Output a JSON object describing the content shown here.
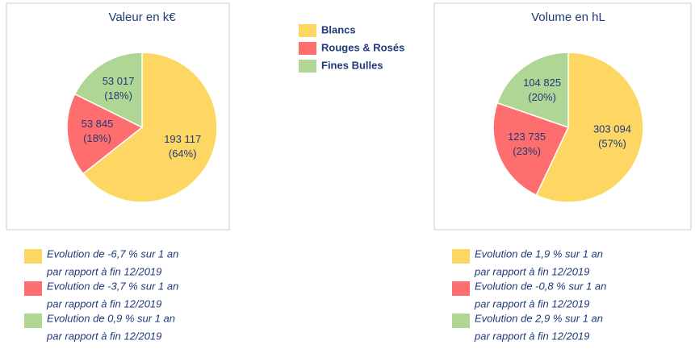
{
  "chart_data": [
    {
      "type": "pie",
      "title": "Valeur en k€",
      "categories": [
        "Blancs",
        "Rouges & Rosés",
        "Fines Bulles"
      ],
      "colors": [
        "#fdd663",
        "#ff6e6e",
        "#b0d695"
      ],
      "values": [
        193117,
        53845,
        53017
      ],
      "value_labels": [
        "193 117",
        "53 845",
        "53 017"
      ],
      "shares": [
        64,
        18,
        18
      ],
      "share_labels": [
        "(64%)",
        "(18%)",
        "(18%)"
      ],
      "annotations": [
        [
          "Evolution de -6,7 % sur 1 an",
          "par rapport à fin 12/2019"
        ],
        [
          "Evolution de -3,7 % sur 1 an",
          "par rapport à fin 12/2019"
        ],
        [
          "Evolution de 0,9 % sur 1 an",
          "par rapport à fin 12/2019"
        ]
      ]
    },
    {
      "type": "pie",
      "title": "Volume en hL",
      "categories": [
        "Blancs",
        "Rouges & Rosés",
        "Fines Bulles"
      ],
      "colors": [
        "#fdd663",
        "#ff6e6e",
        "#b0d695"
      ],
      "values": [
        303094,
        123735,
        104825
      ],
      "value_labels": [
        "303 094",
        "123 735",
        "104 825"
      ],
      "shares": [
        57,
        23,
        20
      ],
      "share_labels": [
        "(57%)",
        "(23%)",
        "(20%)"
      ],
      "annotations": [
        [
          "Evolution de 1,9 % sur 1 an",
          "par rapport à fin 12/2019"
        ],
        [
          "Evolution de -0,8 % sur 1 an",
          "par rapport à fin 12/2019"
        ],
        [
          "Evolution de 2,9 % sur 1 an",
          "par rapport à fin 12/2019"
        ]
      ]
    }
  ]
}
